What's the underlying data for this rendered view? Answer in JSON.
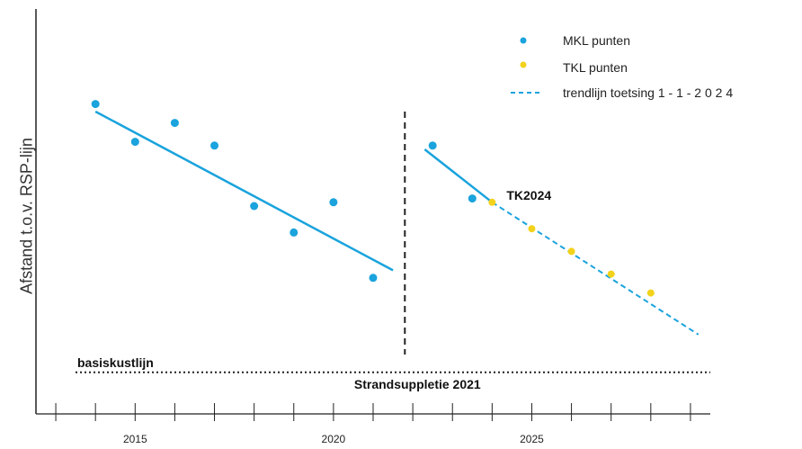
{
  "chart_data": {
    "type": "scatter",
    "ylabel": "Afstand t.o.v. RSP-lijn",
    "xlim": [
      2012.5,
      2029.5
    ],
    "ylim": [
      0,
      10
    ],
    "x_ticks": [
      2013,
      2014,
      2015,
      2016,
      2017,
      2018,
      2019,
      2020,
      2021,
      2022,
      2023,
      2024,
      2025,
      2026,
      2027,
      2028,
      2029
    ],
    "x_tick_labels": [
      {
        "x": 2015,
        "label": "2015"
      },
      {
        "x": 2020,
        "label": "2020"
      },
      {
        "x": 2025,
        "label": "2025"
      }
    ],
    "series": [
      {
        "name": "MKL punten",
        "color": "#1aa3dd",
        "x": [
          2014,
          2015,
          2016,
          2017,
          2018,
          2019,
          2020,
          2021,
          2022.5,
          2023.5
        ],
        "y": [
          8.2,
          7.2,
          7.7,
          7.1,
          5.5,
          4.8,
          5.6,
          3.6,
          7.1,
          5.7
        ]
      },
      {
        "name": "TKL punten",
        "color": "#f2d21b",
        "x": [
          2024,
          2025,
          2026,
          2027,
          2028
        ],
        "y": [
          5.6,
          4.9,
          4.3,
          3.7,
          3.2
        ]
      }
    ],
    "trend_before": {
      "color": "#1aa3dd",
      "x": [
        2014,
        2021.5
      ],
      "y": [
        8.0,
        3.8
      ]
    },
    "trend_after": {
      "color": "#1aa3dd",
      "x": [
        2022.3,
        2024
      ],
      "y": [
        7.0,
        5.6
      ]
    },
    "trend_toetsing": {
      "name": "trendlijn toetsing 1 - 1 - 2 0 2 4",
      "color": "#1aa3dd",
      "dashed": true,
      "x": [
        2024,
        2029.2
      ],
      "y": [
        5.6,
        2.1
      ]
    },
    "basiskustlijn": {
      "label": "basiskustlijn",
      "y": 1.1
    },
    "suppletion": {
      "label": "Strandsuppletie 2021",
      "x": 2021.8
    },
    "annotation": {
      "label": "TK2024",
      "x": 2024,
      "y": 5.6
    },
    "legend_position": "top-right"
  }
}
